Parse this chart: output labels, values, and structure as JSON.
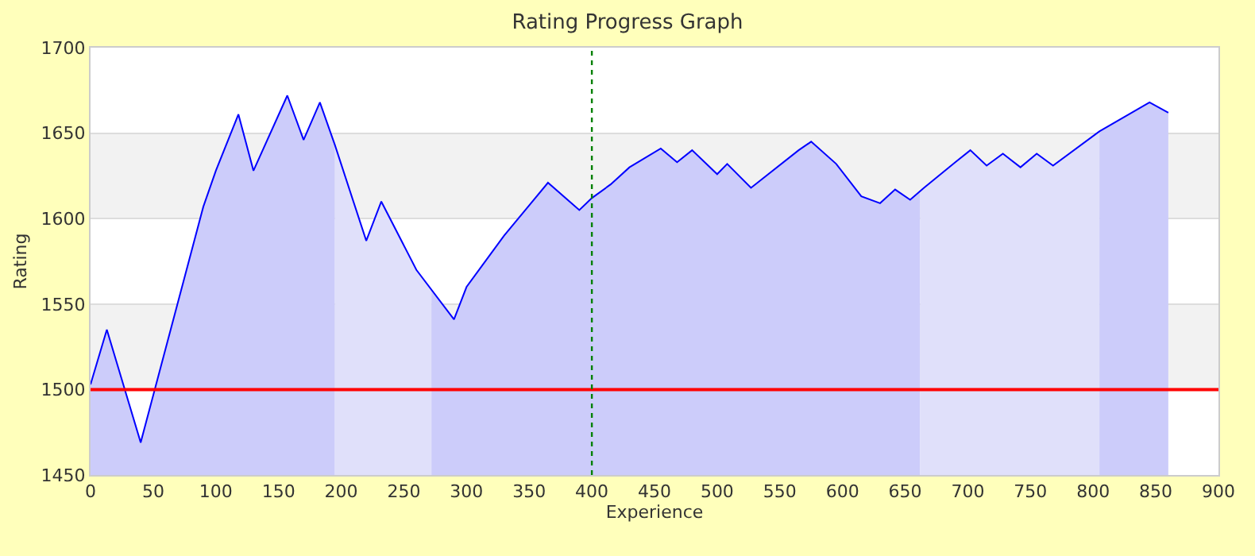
{
  "chart_data": {
    "type": "line",
    "title": "Rating Progress Graph",
    "xlabel": "Experience",
    "ylabel": "Rating",
    "xlim": [
      0,
      900
    ],
    "xticks": [
      0,
      50,
      100,
      150,
      200,
      250,
      300,
      350,
      400,
      450,
      500,
      550,
      600,
      650,
      700,
      750,
      800,
      850,
      900
    ],
    "ylim": [
      1450,
      1700
    ],
    "yticks": [
      1450,
      1500,
      1550,
      1600,
      1650,
      1700
    ],
    "grid": "y",
    "series": [
      {
        "type": "area",
        "color": "#ccccfa",
        "x": [
          0,
          13,
          40,
          90,
          100,
          118,
          130,
          157,
          170,
          183,
          195
        ],
        "values": [
          1503,
          1535,
          1469,
          1607,
          1628,
          1661,
          1628,
          1672,
          1646,
          1668,
          1643
        ]
      },
      {
        "type": "area",
        "color": "#e0e0fa",
        "x": [
          195,
          220,
          232,
          260,
          272
        ],
        "values": [
          1643,
          1587,
          1610,
          1570,
          1558
        ]
      },
      {
        "type": "area",
        "color": "#ccccfa",
        "x": [
          272,
          290,
          300,
          312,
          330,
          365,
          390,
          400,
          415,
          430,
          455,
          468,
          480,
          500,
          508,
          527,
          565,
          575,
          595,
          615,
          630,
          642,
          654,
          662
        ],
        "values": [
          1558,
          1541,
          1560,
          1572,
          1590,
          1621,
          1605,
          1612,
          1620,
          1630,
          1641,
          1633,
          1640,
          1626,
          1632,
          1618,
          1640,
          1645,
          1632,
          1613,
          1609,
          1617,
          1611,
          1616
        ]
      },
      {
        "type": "area",
        "color": "#e0e0fa",
        "x": [
          662,
          665,
          690,
          702,
          715,
          728,
          742,
          755,
          768,
          805
        ],
        "values": [
          1616,
          1618,
          1633,
          1640,
          1631,
          1638,
          1630,
          1638,
          1631,
          1651
        ]
      },
      {
        "type": "area",
        "color": "#ccccfa",
        "x": [
          805,
          845,
          860
        ],
        "values": [
          1651,
          1668,
          1662
        ]
      },
      {
        "color": "#0000ff",
        "x": [
          0,
          13,
          40,
          90,
          100,
          118,
          130,
          157,
          170,
          183,
          195,
          220,
          232,
          260,
          290,
          300,
          312,
          330,
          365,
          390,
          400,
          415,
          430,
          455,
          468,
          480,
          500,
          508,
          527,
          565,
          575,
          595,
          615,
          630,
          642,
          654,
          665,
          690,
          702,
          715,
          728,
          742,
          755,
          768,
          805,
          845,
          860
        ],
        "values": [
          1503,
          1535,
          1469,
          1607,
          1628,
          1661,
          1628,
          1672,
          1646,
          1668,
          1643,
          1587,
          1610,
          1570,
          1541,
          1560,
          1572,
          1590,
          1621,
          1605,
          1612,
          1620,
          1630,
          1641,
          1633,
          1640,
          1626,
          1632,
          1618,
          1640,
          1645,
          1632,
          1613,
          1609,
          1617,
          1611,
          1618,
          1633,
          1640,
          1631,
          1638,
          1630,
          1638,
          1631,
          1651,
          1668,
          1662
        ]
      }
    ],
    "ref_lines": [
      {
        "axis": "y",
        "value": 1500,
        "color": "#ff0000",
        "line_style": "solid"
      },
      {
        "axis": "x",
        "value": 400,
        "color": "#008000",
        "line_style": "dotted"
      }
    ],
    "bands": [
      {
        "axis": "y",
        "from": 1500,
        "to": 1550,
        "color": "#f2f2f2"
      },
      {
        "axis": "y",
        "from": 1600,
        "to": 1650,
        "color": "#f2f2f2"
      }
    ]
  }
}
